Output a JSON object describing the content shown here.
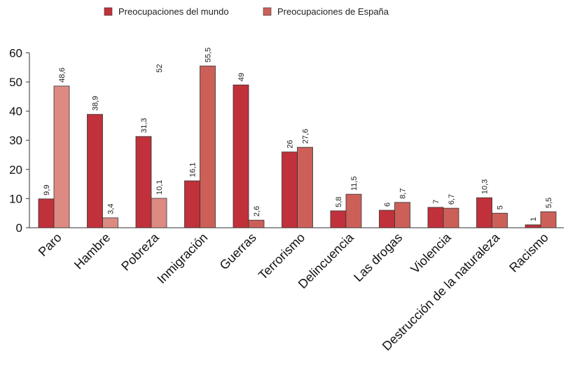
{
  "chart_data": {
    "type": "bar",
    "categories": [
      "Paro",
      "Hambre",
      "Pobreza",
      "Inmigración",
      "Guerras",
      "Terrorismo",
      "Delincuencia",
      "Las drogas",
      "Violencia",
      "Destrucción de la naturaleza",
      "Racismo"
    ],
    "series": [
      {
        "name": "Preocupaciones del mundo",
        "color": "#c1313b",
        "values": [
          9.9,
          38.9,
          31.3,
          16.1,
          49,
          26,
          5.8,
          6,
          7,
          10.3,
          1
        ],
        "labels": [
          "9,9",
          "38,9",
          "31,3",
          "16,1",
          "49",
          "26",
          "5,8",
          "6",
          "7",
          "10,3",
          "1"
        ]
      },
      {
        "name": "Preocupaciones de España",
        "color": "#cc6058",
        "values": [
          48.6,
          3.4,
          10.1,
          55.5,
          2.6,
          27.6,
          11.5,
          8.7,
          6.7,
          5,
          5.5
        ],
        "labels": [
          "48,6",
          "3,4",
          "10,1",
          "55,5",
          "2,6",
          "27,6",
          "11,5",
          "8,7",
          "6,7",
          "5",
          "5,5"
        ]
      }
    ],
    "highlight": {
      "color": "#dd8a82",
      "categories": [
        "Paro",
        "Hambre",
        "Pobreza"
      ]
    },
    "annotations": [
      {
        "text": "52",
        "category": "Pobreza",
        "value": 52
      }
    ],
    "yticks": [
      "0",
      "10",
      "20",
      "30",
      "40",
      "50",
      "60"
    ],
    "ylim": [
      0,
      60
    ],
    "grid": false,
    "legend_position": "top-center",
    "title": "",
    "xlabel": "",
    "ylabel": ""
  }
}
